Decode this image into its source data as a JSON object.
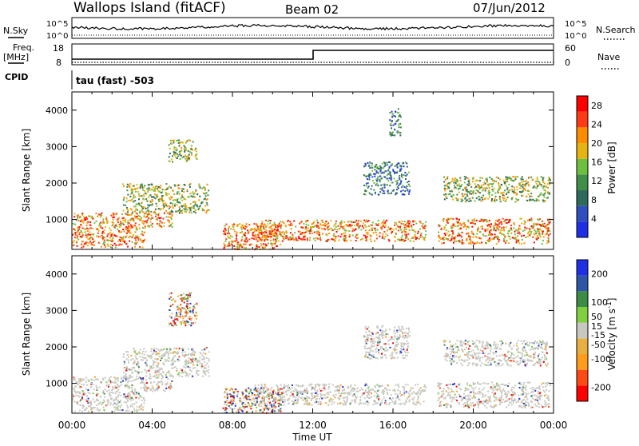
{
  "header": {
    "station": "Wallops Island (fitACF)",
    "beam": "Beam 02",
    "date": "07/Jun/2012"
  },
  "noise_panel": {
    "left_label": "N.Sky",
    "right_label": "N.Search",
    "left_ticks": [
      "10^5",
      "10^0"
    ],
    "right_ticks": [
      "10^5",
      "10^0"
    ]
  },
  "freq_panel": {
    "left_label_1": "Freq.",
    "left_label_2": "[MHz]",
    "right_label": "Nave",
    "left_ticks": [
      "18",
      "8"
    ],
    "right_ticks": [
      "60",
      "0"
    ],
    "cpid_label": "CPID",
    "mode_text": "tau (fast) -503"
  },
  "colors": {
    "power": [
      "#1f2fe6",
      "#2f4fbf",
      "#2e6a5c",
      "#3f8f49",
      "#6fbf3f",
      "#e6b410",
      "#ff8c00",
      "#ff3a14",
      "#ff0000"
    ],
    "velocity": [
      "#ff0000",
      "#ff4a14",
      "#ff9c1c",
      "#e8b040",
      "#c8c8c0",
      "#7fcf3f",
      "#3c8c46",
      "#2f56a6",
      "#1f2fe6"
    ]
  },
  "chart_data": [
    {
      "type": "heatmap",
      "title": "",
      "xlabel": "",
      "ylabel": "Slant Range [km]",
      "x_ticks": [
        "00:00",
        "04:00",
        "08:00",
        "12:00",
        "16:00",
        "20:00",
        "00:00"
      ],
      "y_ticks": [
        1000,
        2000,
        3000,
        4000
      ],
      "ylim": [
        180,
        4500
      ],
      "xlim_hours": [
        0,
        24
      ],
      "colorbar": {
        "label": "Power [dB]",
        "ticks": [
          4,
          8,
          12,
          16,
          20,
          24,
          28
        ],
        "range": [
          0,
          30
        ]
      },
      "echo_regions": [
        {
          "t0": 0.0,
          "t1": 3.6,
          "r0": 250,
          "r1": 800,
          "level": "high"
        },
        {
          "t0": 0.0,
          "t1": 5.0,
          "r0": 800,
          "r1": 1200,
          "level": "high"
        },
        {
          "t0": 2.5,
          "t1": 6.8,
          "r0": 1200,
          "r1": 2000,
          "level": "mid"
        },
        {
          "t0": 4.8,
          "t1": 6.2,
          "r0": 2600,
          "r1": 3200,
          "level": "mid"
        },
        {
          "t0": 7.5,
          "t1": 10.5,
          "r0": 200,
          "r1": 900,
          "level": "high"
        },
        {
          "t0": 9.0,
          "t1": 17.6,
          "r0": 420,
          "r1": 1000,
          "level": "high"
        },
        {
          "t0": 18.2,
          "t1": 23.8,
          "r0": 350,
          "r1": 1050,
          "level": "high"
        },
        {
          "t0": 18.5,
          "t1": 23.8,
          "r0": 1500,
          "r1": 2200,
          "level": "mid"
        },
        {
          "t0": 14.5,
          "t1": 16.8,
          "r0": 1700,
          "r1": 2600,
          "level": "low"
        },
        {
          "t0": 15.8,
          "t1": 16.4,
          "r0": 3300,
          "r1": 4100,
          "level": "low"
        }
      ]
    },
    {
      "type": "heatmap",
      "title": "",
      "xlabel": "Time UT",
      "ylabel": "Slant Range [km]",
      "x_ticks": [
        "00:00",
        "04:00",
        "08:00",
        "12:00",
        "16:00",
        "20:00",
        "00:00"
      ],
      "y_ticks": [
        1000,
        2000,
        3000,
        4000
      ],
      "ylim": [
        180,
        4500
      ],
      "xlim_hours": [
        0,
        24
      ],
      "colorbar": {
        "label": "Velocity [m s^-1]",
        "ticks": [
          -200,
          -100,
          -50,
          -15,
          15,
          50,
          100,
          200
        ],
        "range": [
          -250,
          250
        ]
      },
      "echo_regions": [
        {
          "t0": 0.0,
          "t1": 3.6,
          "r0": 250,
          "r1": 800,
          "level": "ground"
        },
        {
          "t0": 0.0,
          "t1": 5.0,
          "r0": 800,
          "r1": 1200,
          "level": "ground"
        },
        {
          "t0": 2.5,
          "t1": 6.8,
          "r0": 1200,
          "r1": 2000,
          "level": "ground"
        },
        {
          "t0": 4.8,
          "t1": 6.2,
          "r0": 2600,
          "r1": 3500,
          "level": "mixed"
        },
        {
          "t0": 7.5,
          "t1": 10.5,
          "r0": 200,
          "r1": 900,
          "level": "mixed"
        },
        {
          "t0": 9.0,
          "t1": 17.6,
          "r0": 420,
          "r1": 1000,
          "level": "ground"
        },
        {
          "t0": 18.2,
          "t1": 23.8,
          "r0": 350,
          "r1": 1050,
          "level": "ground"
        },
        {
          "t0": 18.5,
          "t1": 23.8,
          "r0": 1500,
          "r1": 2200,
          "level": "ground"
        },
        {
          "t0": 14.5,
          "t1": 16.8,
          "r0": 1700,
          "r1": 2600,
          "level": "ground"
        }
      ]
    }
  ]
}
